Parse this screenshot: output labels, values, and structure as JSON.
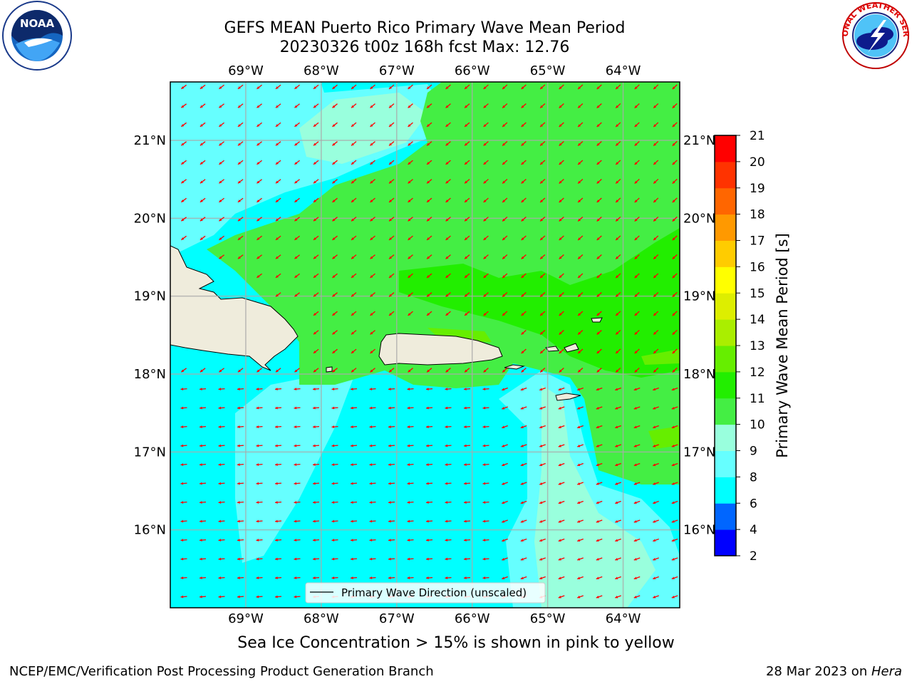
{
  "title": {
    "line1": "GEFS MEAN Puerto Rico Primary Wave Mean Period",
    "line2": "20230326 t00z 168h fcst   Max: 12.76"
  },
  "logos": {
    "left": "noaa-logo",
    "left_text": "NOAA",
    "right": "nws-logo",
    "right_text": "NATIONAL WEATHER SERVICE"
  },
  "map": {
    "lon_ticks": [
      "69°W",
      "68°W",
      "67°W",
      "66°W",
      "65°W",
      "64°W"
    ],
    "lat_ticks": [
      "21°N",
      "20°N",
      "19°N",
      "18°N",
      "17°N",
      "16°N"
    ],
    "lon_values": [
      -69,
      -68,
      -67,
      -66,
      -65,
      -64
    ],
    "lat_values": [
      21,
      20,
      19,
      18,
      17,
      16
    ],
    "lon_range": [
      -70.0,
      -63.25
    ],
    "lat_range": [
      15.0,
      21.75
    ],
    "legend_label": "Primary Wave Direction (unscaled)",
    "land_color": "#efecdc",
    "arrow_color": "#ff0000"
  },
  "colorbar": {
    "label": "Primary Wave Mean Period [s]",
    "ticks": [
      "2",
      "4",
      "6",
      "8",
      "9",
      "10",
      "11",
      "12",
      "13",
      "14",
      "15",
      "16",
      "17",
      "18",
      "19",
      "20",
      "21"
    ],
    "levels": [
      2,
      4,
      6,
      8,
      9,
      10,
      11,
      12,
      13,
      14,
      15,
      16,
      17,
      18,
      19,
      20,
      21
    ],
    "colors": [
      "#0000ff",
      "#0066ff",
      "#00ffff",
      "#66ffff",
      "#99ffdd",
      "#44ee44",
      "#22ee00",
      "#66ee00",
      "#aaee00",
      "#ddee00",
      "#ffff00",
      "#ffcc00",
      "#ff9900",
      "#ff6600",
      "#ff3300",
      "#ff0000"
    ]
  },
  "subtitle": "Sea Ice Concentration > 15% is shown in pink to yellow",
  "footer": {
    "left": "NCEP/EMC/Verification Post Processing Product Generation Branch",
    "right_date": "28 Mar 2023 on ",
    "right_host": "Hera"
  }
}
